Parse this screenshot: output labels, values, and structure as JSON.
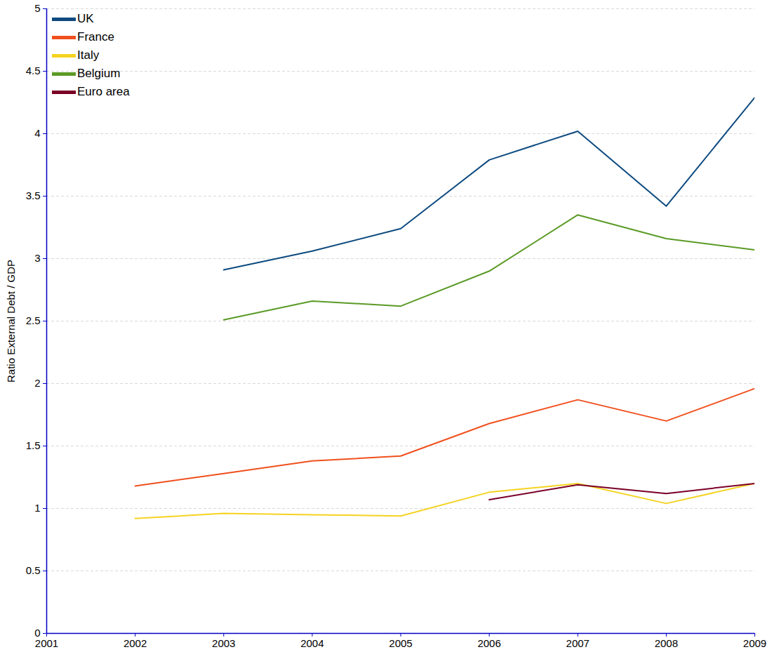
{
  "chart_data": {
    "type": "line",
    "y_label": "Ratio External Debt / GDP",
    "x": [
      2001,
      2002,
      2003,
      2004,
      2005,
      2006,
      2007,
      2008,
      2009
    ],
    "series": [
      {
        "name": "UK",
        "color": "#0d4a80",
        "values": [
          null,
          null,
          2.91,
          3.06,
          3.24,
          3.79,
          4.02,
          3.42,
          4.29
        ]
      },
      {
        "name": "France",
        "color": "#f0501e",
        "values": [
          null,
          1.18,
          1.28,
          1.38,
          1.42,
          1.68,
          1.87,
          1.7,
          1.96
        ]
      },
      {
        "name": "Italy",
        "color": "#f5d322",
        "values": [
          null,
          0.92,
          0.96,
          0.95,
          0.94,
          1.13,
          1.2,
          1.04,
          1.2
        ]
      },
      {
        "name": "Belgium",
        "color": "#5a9a26",
        "values": [
          null,
          null,
          2.51,
          2.66,
          2.62,
          2.9,
          3.35,
          3.16,
          3.07
        ]
      },
      {
        "name": "Euro area",
        "color": "#7a0027",
        "values": [
          null,
          null,
          null,
          null,
          null,
          1.07,
          1.19,
          1.12,
          1.2
        ]
      }
    ],
    "xlim": [
      2001,
      2009
    ],
    "xticks": [
      2001,
      2002,
      2003,
      2004,
      2005,
      2006,
      2007,
      2008,
      2009
    ],
    "ylim": [
      0,
      5
    ],
    "yticks": [
      0,
      0.5,
      1,
      1.5,
      2,
      2.5,
      3,
      3.5,
      4,
      4.5,
      5
    ],
    "grid": true,
    "legend": "top-left"
  }
}
